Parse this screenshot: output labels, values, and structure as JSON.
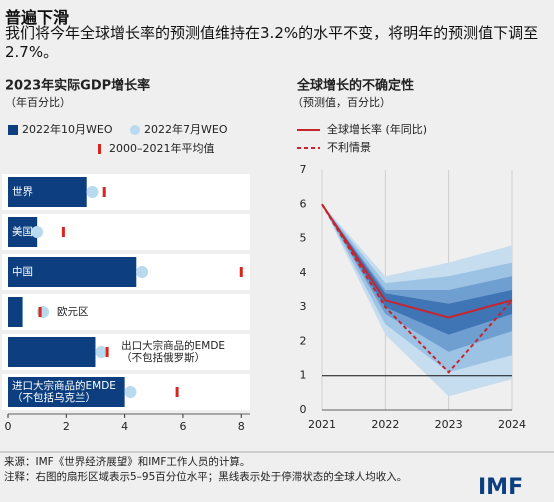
{
  "header": {
    "title": "普遍下滑",
    "subtitle": "我们将今年全球增长率的预测值维持在3.2%的水平不变，将明年的预测值下调至2.7%。"
  },
  "chart_data": [
    {
      "type": "hbar",
      "title": "2023年实际GDP增长率",
      "subtitle": "（年百分比）",
      "categories": [
        "世界",
        "美国",
        "中国",
        "欧元区",
        "出口大宗商品的EMDE\n（不包括俄罗斯）",
        "进口大宗商品的EMDE\n（不包括乌克兰）"
      ],
      "series": [
        {
          "name": "2022年10月WEO",
          "color": "#0d3f80",
          "marker": "bar",
          "values": [
            2.7,
            1.0,
            4.4,
            0.5,
            3.0,
            4.0
          ]
        },
        {
          "name": "2022年7月WEO",
          "color": "#b9d9ef",
          "marker": "circle",
          "values": [
            2.9,
            1.0,
            4.6,
            1.2,
            3.2,
            4.2
          ]
        },
        {
          "name": "2000–2021年平均值",
          "color": "#d7261e",
          "marker": "tick",
          "values": [
            3.3,
            1.9,
            8.0,
            1.1,
            3.4,
            5.8
          ]
        }
      ],
      "xlim": [
        0,
        8.3
      ],
      "xticks": [
        0,
        2,
        4,
        6,
        8
      ]
    },
    {
      "type": "fan",
      "title": "全球增长的不确定性",
      "subtitle": "（预测值，百分比）",
      "x": [
        2021,
        2022,
        2023,
        2024
      ],
      "xlim": [
        2021,
        2024
      ],
      "xticks": [
        2021,
        2022,
        2023,
        2024
      ],
      "ylim": [
        0,
        7
      ],
      "yticks": [
        0,
        1,
        2,
        3,
        4,
        5,
        6,
        7
      ],
      "grid": true,
      "reference_line": 1,
      "bands": [
        {
          "color": "#c6dcef",
          "lower": [
            6.0,
            2.2,
            0.4,
            0.9
          ],
          "upper": [
            6.0,
            3.9,
            4.3,
            4.8
          ]
        },
        {
          "color": "#9cc3e4",
          "lower": [
            6.0,
            2.5,
            1.1,
            1.6
          ],
          "upper": [
            6.0,
            3.7,
            3.9,
            4.3
          ]
        },
        {
          "color": "#6f9fd0",
          "lower": [
            6.0,
            2.8,
            1.7,
            2.3
          ],
          "upper": [
            6.0,
            3.5,
            3.5,
            3.9
          ]
        },
        {
          "color": "#3f74b5",
          "lower": [
            6.0,
            3.0,
            2.2,
            2.8
          ],
          "upper": [
            6.0,
            3.4,
            3.1,
            3.5
          ]
        }
      ],
      "series": [
        {
          "name": "全球增长率 (年同比)",
          "color": "#c8242b",
          "dash": false,
          "values": [
            6.0,
            3.2,
            2.7,
            3.2
          ]
        },
        {
          "name": "不利情景",
          "color": "#c8242b",
          "dash": true,
          "values": [
            6.0,
            3.0,
            1.1,
            3.2
          ]
        }
      ]
    }
  ],
  "footer": {
    "source": "来源：IMF《世界经济展望》和IMF工作人员的计算。",
    "note": "注释：右图的扇形区域表示5–95百分位水平；黑线表示处于停滞状态的全球人均收入。",
    "logo": "IMF"
  }
}
